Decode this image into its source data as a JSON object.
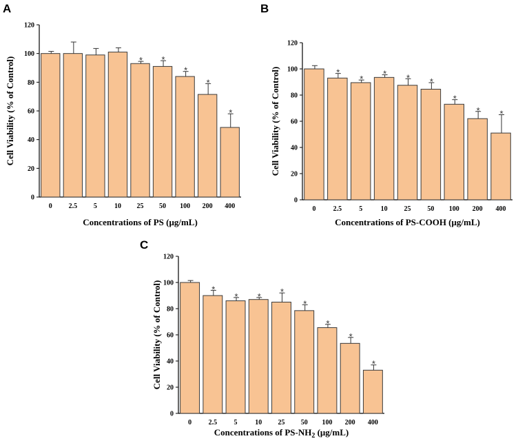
{
  "chart_data": [
    {
      "type": "bar",
      "panel": "A",
      "categories": [
        "0",
        "2.5",
        "5",
        "10",
        "25",
        "50",
        "100",
        "200",
        "400"
      ],
      "values": [
        100,
        100,
        99,
        101,
        93,
        91,
        84,
        71.5,
        48.5
      ],
      "errors": [
        1.5,
        8,
        4.5,
        3,
        1.5,
        4,
        3.5,
        7.5,
        9.5
      ],
      "significant": [
        false,
        false,
        false,
        false,
        true,
        true,
        true,
        true,
        true
      ],
      "star": "*",
      "xlabel": "Concentrations of PS (μg/mL)",
      "ylabel": "Cell Viability (% of Control)",
      "ylim": [
        0,
        120
      ],
      "yticks": [
        "0",
        "20",
        "40",
        "60",
        "80",
        "100",
        "120"
      ]
    },
    {
      "type": "bar",
      "panel": "B",
      "categories": [
        "0",
        "2.5",
        "5",
        "10",
        "25",
        "50",
        "100",
        "200",
        "400"
      ],
      "values": [
        100,
        93,
        89.5,
        93.5,
        87.5,
        84.5,
        73,
        62,
        51
      ],
      "errors": [
        2.5,
        3.5,
        2,
        2,
        5,
        5,
        3.5,
        5.5,
        14
      ],
      "significant": [
        false,
        true,
        true,
        true,
        true,
        true,
        true,
        true,
        true
      ],
      "star": "*",
      "xlabel": "Concentrations of PS-COOH (μg/mL)",
      "ylabel": "Cell Viability (% of Control)",
      "ylim": [
        0,
        120
      ],
      "yticks": [
        "0",
        "20",
        "40",
        "60",
        "80",
        "100",
        "120"
      ]
    },
    {
      "type": "bar",
      "panel": "C",
      "categories": [
        "0",
        "2.5",
        "5",
        "10",
        "25",
        "50",
        "100",
        "200",
        "400"
      ],
      "values": [
        100,
        90,
        86,
        87,
        85,
        78.5,
        65.5,
        53.5,
        33
      ],
      "errors": [
        1.5,
        4,
        2.5,
        1.5,
        7,
        4.5,
        2.5,
        4.5,
        4
      ],
      "significant": [
        false,
        true,
        true,
        true,
        true,
        true,
        true,
        true,
        true
      ],
      "star": "*",
      "xlabel_main": "Concentrations of PS-NH",
      "xlabel_sub": "2",
      "xlabel_tail": " (μg/mL)",
      "ylabel": "Cell Viability (% of Control)",
      "ylim": [
        0,
        120
      ],
      "yticks": [
        "0",
        "20",
        "40",
        "60",
        "80",
        "100",
        "120"
      ]
    }
  ]
}
